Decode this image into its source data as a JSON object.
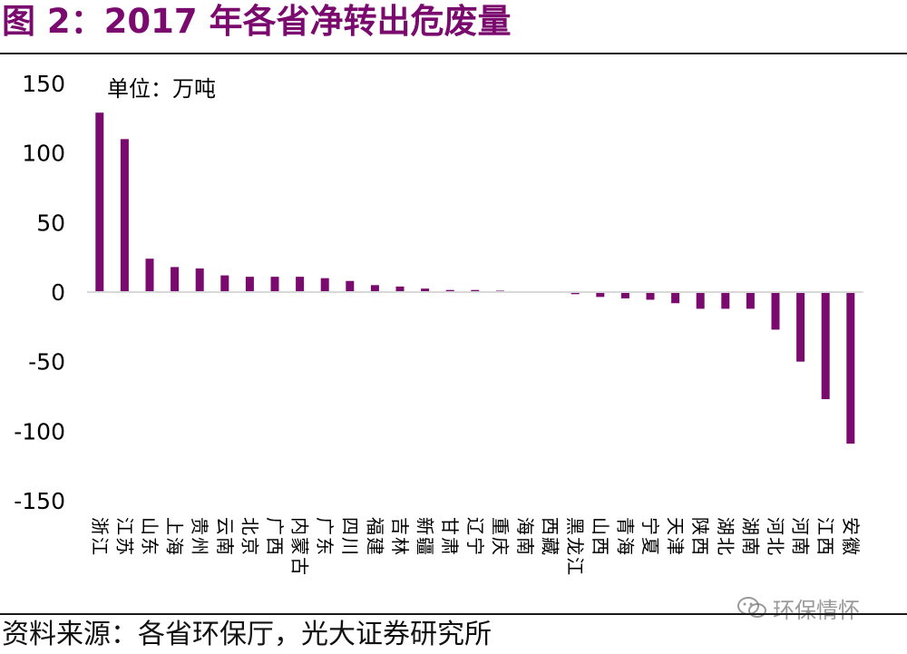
{
  "figure": {
    "title": "图 2：2017 年各省净转出危废量",
    "source": "资料来源：各省环保厅，光大证券研究所",
    "watermark": "环保情怀",
    "bar_color": "#7a0a6e",
    "title_color": "#7a0a6e"
  },
  "chart_data": {
    "type": "bar",
    "title": "图 2：2017 年各省净转出危废量",
    "unit_label": "单位：万吨",
    "ylabel": "",
    "xlabel": "",
    "ylim": [
      -150,
      150
    ],
    "yticks": [
      150,
      100,
      50,
      0,
      -50,
      -100,
      -150
    ],
    "ytick_labels": [
      "150",
      "100",
      "50",
      "0",
      "-50",
      "-100",
      "-150"
    ],
    "grid": false,
    "legend": "none",
    "categories": [
      "浙江",
      "江苏",
      "山东",
      "上海",
      "贵州",
      "云南",
      "北京",
      "广西",
      "内蒙古",
      "广东",
      "四川",
      "福建",
      "吉林",
      "新疆",
      "甘肃",
      "辽宁",
      "重庆",
      "海南",
      "西藏",
      "黑龙江",
      "山西",
      "青海",
      "宁夏",
      "天津",
      "陕西",
      "湖北",
      "湖南",
      "河北",
      "河南",
      "江西",
      "安徽"
    ],
    "values": [
      129,
      110,
      24,
      18,
      17,
      12,
      11,
      11,
      11,
      10,
      8,
      5,
      4,
      2.5,
      1.5,
      1.5,
      1,
      0,
      0,
      -1.5,
      -3.5,
      -4.5,
      -5.5,
      -8,
      -12,
      -12,
      -12,
      -27,
      -50,
      -77,
      -109
    ]
  }
}
